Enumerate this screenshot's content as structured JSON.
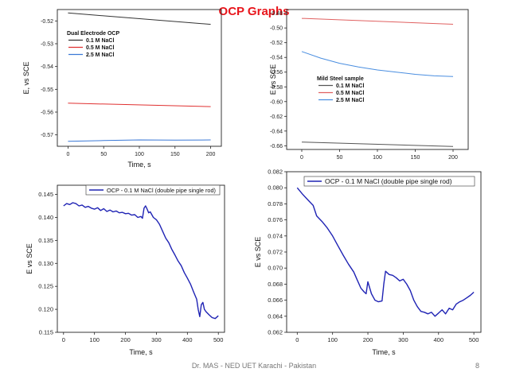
{
  "slide": {
    "title": "OCP Graphs",
    "footer": "Dr. MAS - NED UET Karachi - Pakistan",
    "page_number": "8"
  },
  "chart_data": [
    {
      "type": "line",
      "ylabel": "E, vs SCE",
      "xlabel": "Time, s",
      "xlim": [
        -15,
        215
      ],
      "ylim": [
        -0.575,
        -0.515
      ],
      "xticks": [
        "0",
        "50",
        "100",
        "150",
        "200"
      ],
      "yticks": [
        "-0.52",
        "-0.53",
        "-0.54",
        "-0.55",
        "-0.56",
        "-0.57"
      ],
      "legend_title": "Dual Electrode OCP",
      "legend_placement": "top-left",
      "series": [
        {
          "name": "0.1 M NaCl",
          "color": "#333333",
          "x": [
            0,
            200
          ],
          "y": [
            -0.5165,
            -0.5215
          ]
        },
        {
          "name": "0.5 M NaCl",
          "color": "#e03030",
          "x": [
            0,
            200
          ],
          "y": [
            -0.5561,
            -0.5576
          ]
        },
        {
          "name": "2.5 M NaCl",
          "color": "#3a78d6",
          "x": [
            0,
            50,
            100,
            150,
            200
          ],
          "y": [
            -0.5728,
            -0.5725,
            -0.5722,
            -0.5723,
            -0.5722
          ]
        }
      ]
    },
    {
      "type": "line",
      "ylabel": "E vs SCE",
      "xlabel": "",
      "xlim": [
        -20,
        220
      ],
      "ylim": [
        -0.665,
        -0.475
      ],
      "xticks": [
        "0",
        "50",
        "100",
        "150",
        "200"
      ],
      "yticks": [
        "-0.48",
        "-0.50",
        "-0.52",
        "-0.54",
        "-0.56",
        "-0.58",
        "-0.60",
        "-0.62",
        "-0.64",
        "-0.66"
      ],
      "legend_title": "Mild Steel sample",
      "legend_placement": "center-left",
      "series": [
        {
          "name": "0.1 M NaCl",
          "color": "#555555",
          "x": [
            0,
            200
          ],
          "y": [
            -0.655,
            -0.661
          ]
        },
        {
          "name": "0.5 M NaCl",
          "color": "#e06060",
          "x": [
            0,
            200
          ],
          "y": [
            -0.487,
            -0.495
          ]
        },
        {
          "name": "2.5 M NaCl",
          "color": "#4a8ee0",
          "x": [
            0,
            25,
            50,
            75,
            100,
            125,
            150,
            175,
            200
          ],
          "y": [
            -0.532,
            -0.541,
            -0.548,
            -0.553,
            -0.557,
            -0.56,
            -0.563,
            -0.565,
            -0.566
          ]
        }
      ]
    },
    {
      "type": "line",
      "ylabel": "E vs SCE",
      "xlabel": "Time, s",
      "xlim": [
        -20,
        520
      ],
      "ylim": [
        0.115,
        0.147
      ],
      "xticks": [
        "0",
        "100",
        "200",
        "300",
        "400",
        "500"
      ],
      "yticks": [
        "0.145",
        "0.140",
        "0.135",
        "0.130",
        "0.125",
        "0.120",
        "0.115"
      ],
      "legend_placement": "top-right",
      "series": [
        {
          "name": "OCP - 0.1 M NaCl (double pipe single rod)",
          "color": "#1f23b4",
          "x": [
            0,
            10,
            20,
            30,
            40,
            50,
            60,
            70,
            80,
            90,
            100,
            110,
            120,
            130,
            140,
            150,
            160,
            170,
            180,
            190,
            200,
            210,
            220,
            230,
            240,
            250,
            255,
            260,
            265,
            270,
            275,
            280,
            290,
            300,
            310,
            320,
            330,
            340,
            350,
            360,
            370,
            380,
            390,
            400,
            410,
            420,
            430,
            435,
            440,
            445,
            450,
            455,
            460,
            470,
            480,
            490,
            500
          ],
          "y": [
            0.1425,
            0.143,
            0.1428,
            0.1432,
            0.143,
            0.1425,
            0.1427,
            0.1422,
            0.1424,
            0.142,
            0.1418,
            0.1421,
            0.1415,
            0.1419,
            0.1413,
            0.1416,
            0.1412,
            0.1414,
            0.141,
            0.1411,
            0.1408,
            0.1409,
            0.1405,
            0.1406,
            0.14,
            0.1402,
            0.1398,
            0.142,
            0.1425,
            0.1418,
            0.141,
            0.1412,
            0.14,
            0.1395,
            0.1385,
            0.137,
            0.1355,
            0.1345,
            0.133,
            0.1318,
            0.1305,
            0.1295,
            0.128,
            0.1268,
            0.1255,
            0.1238,
            0.1222,
            0.12,
            0.1184,
            0.121,
            0.1215,
            0.12,
            0.1195,
            0.1188,
            0.1182,
            0.118,
            0.1186
          ]
        }
      ]
    },
    {
      "type": "line",
      "ylabel": "E vs SCE",
      "xlabel": "Time, s",
      "xlim": [
        -30,
        520
      ],
      "ylim": [
        0.062,
        0.082
      ],
      "xticks": [
        "0",
        "100",
        "200",
        "300",
        "400",
        "500"
      ],
      "yticks": [
        "0.082",
        "0.080",
        "0.078",
        "0.076",
        "0.074",
        "0.072",
        "0.070",
        "0.068",
        "0.066",
        "0.064",
        "0.062"
      ],
      "legend_placement": "top-right",
      "series": [
        {
          "name": "OCP - 0.1 M NaCl (double pipe single rod)",
          "color": "#1f23b4",
          "x": [
            0,
            15,
            30,
            45,
            55,
            70,
            85,
            100,
            115,
            130,
            145,
            160,
            170,
            180,
            190,
            195,
            200,
            210,
            220,
            230,
            240,
            245,
            250,
            260,
            270,
            280,
            290,
            300,
            310,
            320,
            330,
            340,
            350,
            360,
            370,
            380,
            390,
            400,
            410,
            420,
            430,
            440,
            450,
            460,
            470,
            480,
            490,
            500
          ],
          "y": [
            0.08,
            0.0792,
            0.0785,
            0.0778,
            0.0765,
            0.0758,
            0.075,
            0.074,
            0.0728,
            0.0716,
            0.0705,
            0.0695,
            0.0685,
            0.0675,
            0.067,
            0.0668,
            0.0683,
            0.0668,
            0.066,
            0.0658,
            0.0659,
            0.068,
            0.0696,
            0.0692,
            0.0691,
            0.0688,
            0.0684,
            0.0686,
            0.068,
            0.0672,
            0.066,
            0.0652,
            0.0646,
            0.0645,
            0.0643,
            0.0645,
            0.064,
            0.0644,
            0.0648,
            0.0643,
            0.065,
            0.0648,
            0.0655,
            0.0658,
            0.066,
            0.0663,
            0.0666,
            0.067
          ]
        }
      ]
    }
  ]
}
